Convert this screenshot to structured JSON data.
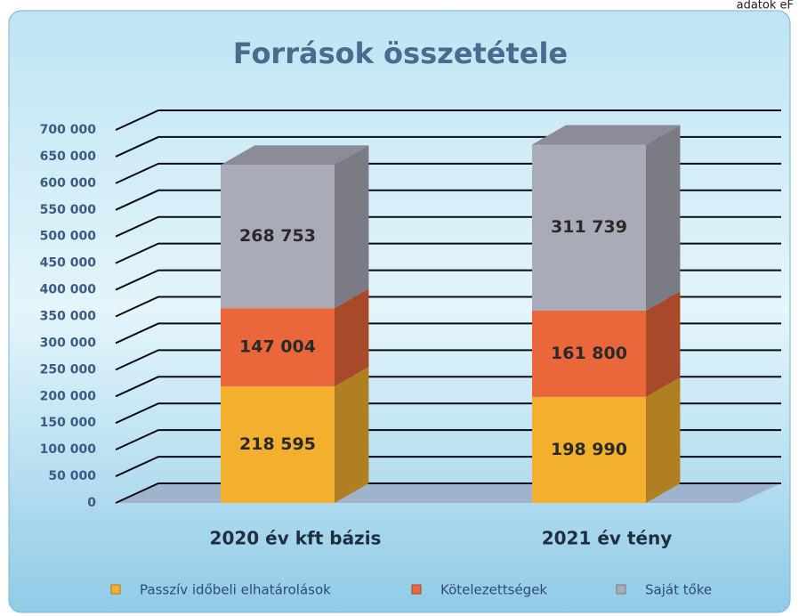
{
  "corner_note": "adatok eF",
  "chart_data": {
    "type": "bar3d_stacked",
    "title": "Források összetétele",
    "categories": [
      "2020 év kft bázis",
      "2021 év tény"
    ],
    "series": [
      {
        "name": "Passzív időbeli elhatárolások",
        "color": "#f3b02f",
        "values": [
          218595,
          198990
        ],
        "value_labels": [
          "218 595",
          "198 990"
        ]
      },
      {
        "name": "Kötelezettségek",
        "color": "#e9673b",
        "values": [
          147004,
          161800
        ],
        "value_labels": [
          "147 004",
          "161 800"
        ]
      },
      {
        "name": "Saját tőke",
        "color": "#a9abb9",
        "values": [
          268753,
          311739
        ],
        "value_labels": [
          "268 753",
          "311 739"
        ]
      }
    ],
    "ylim": [
      0,
      700000
    ],
    "yticks": [
      0,
      {
        "value": 50000,
        "label": "50 000"
      },
      {
        "value": 100000,
        "label": "100 000"
      },
      {
        "value": 150000,
        "label": "150 000"
      },
      {
        "value": 200000,
        "label": "200 000"
      },
      {
        "value": 250000,
        "label": "250 000"
      },
      {
        "value": 300000,
        "label": "300 000"
      },
      {
        "value": 350000,
        "label": "350 000"
      },
      {
        "value": 400000,
        "label": "400 000"
      },
      {
        "value": 450000,
        "label": "450 000"
      },
      {
        "value": 500000,
        "label": "500 000"
      },
      {
        "value": 550000,
        "label": "550 000"
      },
      {
        "value": 600000,
        "label": "600 000"
      },
      {
        "value": 650000,
        "label": "650 000"
      },
      {
        "value": 700000,
        "label": "700 000"
      }
    ],
    "grid": true,
    "legend": "bottom"
  }
}
